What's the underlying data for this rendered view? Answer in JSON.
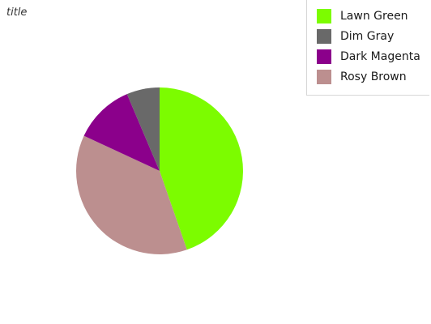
{
  "chart_data": {
    "type": "pie",
    "title": "title",
    "legend_position": "top-right",
    "categories": [
      "Lawn Green",
      "Dim Gray",
      "Dark Magenta",
      "Rosy Brown"
    ],
    "values": [
      42,
      6,
      11,
      35
    ],
    "colors": [
      "#7cfc00",
      "#696969",
      "#8b008b",
      "#bc8f8f"
    ]
  }
}
